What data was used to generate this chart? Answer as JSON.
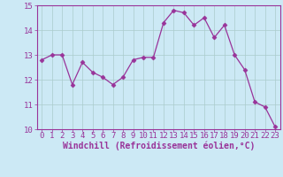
{
  "x": [
    0,
    1,
    2,
    3,
    4,
    5,
    6,
    7,
    8,
    9,
    10,
    11,
    12,
    13,
    14,
    15,
    16,
    17,
    18,
    19,
    20,
    21,
    22,
    23
  ],
  "y": [
    12.8,
    13.0,
    13.0,
    11.8,
    12.7,
    12.3,
    12.1,
    11.8,
    12.1,
    12.8,
    12.9,
    12.9,
    14.3,
    14.8,
    14.7,
    14.2,
    14.5,
    13.7,
    14.2,
    13.0,
    12.4,
    11.1,
    10.9,
    10.1
  ],
  "line_color": "#993399",
  "marker": "D",
  "marker_size": 2.5,
  "bg_color": "#cce9f5",
  "grid_color": "#aacccc",
  "xlabel": "Windchill (Refroidissement éolien,°C)",
  "xlim": [
    -0.5,
    23.5
  ],
  "ylim": [
    10,
    15
  ],
  "yticks": [
    10,
    11,
    12,
    13,
    14,
    15
  ],
  "xticks": [
    0,
    1,
    2,
    3,
    4,
    5,
    6,
    7,
    8,
    9,
    10,
    11,
    12,
    13,
    14,
    15,
    16,
    17,
    18,
    19,
    20,
    21,
    22,
    23
  ],
  "font_color": "#993399",
  "tick_fontsize": 6.5,
  "xlabel_fontsize": 7
}
